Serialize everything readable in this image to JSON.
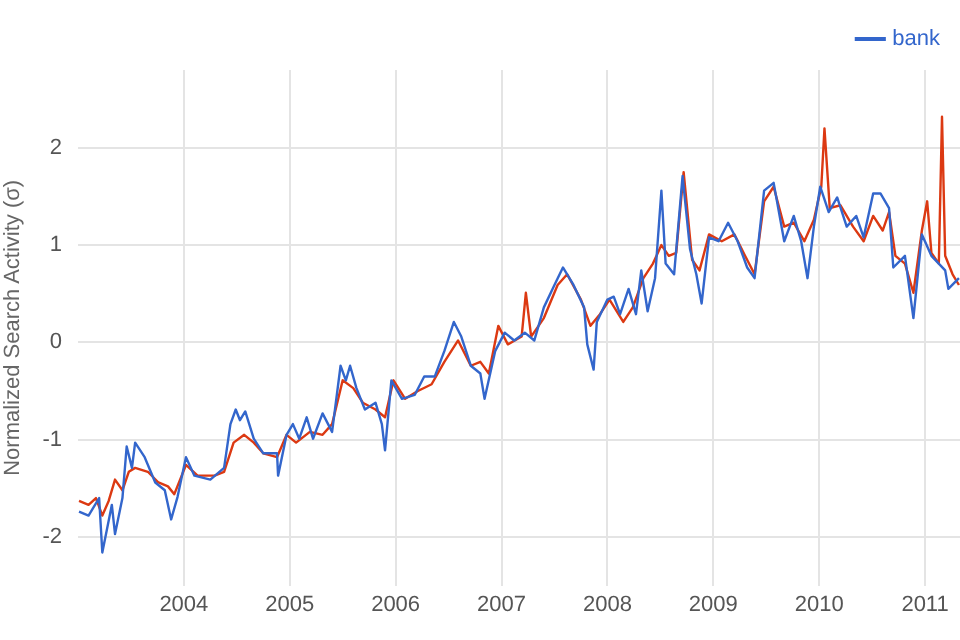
{
  "chart_data": {
    "type": "line",
    "ylabel": "Normalized Search Activity (σ)",
    "xlim": [
      2003,
      2011.33
    ],
    "xticks": [
      2004,
      2005,
      2006,
      2007,
      2008,
      2009,
      2010,
      2011
    ],
    "ylim": [
      -2.5,
      2.8
    ],
    "yticks": [
      -2,
      -1,
      0,
      1,
      2
    ],
    "grid": true,
    "legend": "top right",
    "marker": "none",
    "line_style": "solid",
    "series": [
      {
        "name": "bank",
        "color": "#3366cc",
        "x": [
          2003.01,
          2003.1,
          2003.2,
          2003.23,
          2003.32,
          2003.35,
          2003.42,
          2003.46,
          2003.51,
          2003.54,
          2003.63,
          2003.73,
          2003.82,
          2003.88,
          2003.94,
          2004.02,
          2004.1,
          2004.25,
          2004.38,
          2004.44,
          2004.49,
          2004.53,
          2004.58,
          2004.66,
          2004.75,
          2004.88,
          2004.89,
          2004.97,
          2005.03,
          2005.09,
          2005.16,
          2005.22,
          2005.31,
          2005.4,
          2005.48,
          2005.53,
          2005.57,
          2005.63,
          2005.71,
          2005.81,
          2005.87,
          2005.9,
          2005.96,
          2006.06,
          2006.18,
          2006.27,
          2006.37,
          2006.46,
          2006.55,
          2006.62,
          2006.71,
          2006.8,
          2006.84,
          2006.94,
          2007.03,
          2007.12,
          2007.22,
          2007.31,
          2007.4,
          2007.5,
          2007.58,
          2007.68,
          2007.78,
          2007.81,
          2007.87,
          2007.9,
          2008,
          2008.06,
          2008.12,
          2008.2,
          2008.27,
          2008.32,
          2008.38,
          2008.45,
          2008.51,
          2008.55,
          2008.63,
          2008.71,
          2008.78,
          2008.84,
          2008.89,
          2008.96,
          2009.05,
          2009.14,
          2009.23,
          2009.32,
          2009.39,
          2009.48,
          2009.57,
          2009.67,
          2009.76,
          2009.83,
          2009.89,
          2009.95,
          2010.01,
          2010.09,
          2010.17,
          2010.26,
          2010.35,
          2010.42,
          2010.51,
          2010.58,
          2010.66,
          2010.7,
          2010.81,
          2010.89,
          2010.97,
          2011.06,
          2011.19,
          2011.22,
          2011.32
        ],
        "values": [
          -1.74,
          -1.78,
          -1.6,
          -2.16,
          -1.67,
          -1.97,
          -1.6,
          -1.07,
          -1.29,
          -1.03,
          -1.18,
          -1.44,
          -1.52,
          -1.82,
          -1.59,
          -1.18,
          -1.37,
          -1.41,
          -1.29,
          -0.84,
          -0.69,
          -0.8,
          -0.71,
          -0.99,
          -1.14,
          -1.14,
          -1.37,
          -0.95,
          -0.84,
          -0.99,
          -0.77,
          -0.99,
          -0.73,
          -0.92,
          -0.24,
          -0.39,
          -0.24,
          -0.47,
          -0.69,
          -0.62,
          -0.84,
          -1.11,
          -0.39,
          -0.58,
          -0.54,
          -0.35,
          -0.35,
          -0.09,
          0.21,
          0.06,
          -0.24,
          -0.32,
          -0.58,
          -0.09,
          0.1,
          0.02,
          0.1,
          0.02,
          0.36,
          0.59,
          0.77,
          0.59,
          0.36,
          -0.02,
          -0.28,
          0.21,
          0.44,
          0.47,
          0.29,
          0.55,
          0.29,
          0.74,
          0.32,
          0.66,
          1.56,
          0.81,
          0.7,
          1.71,
          0.96,
          0.7,
          0.4,
          1.08,
          1.04,
          1.23,
          1.04,
          0.77,
          0.66,
          1.56,
          1.64,
          1.04,
          1.3,
          1.04,
          0.66,
          1.19,
          1.6,
          1.34,
          1.49,
          1.19,
          1.3,
          1.08,
          1.53,
          1.53,
          1.38,
          0.77,
          0.89,
          0.25,
          1.11,
          0.89,
          0.74,
          0.55,
          0.66
        ]
      },
      {
        "color": "#dc3912",
        "x": [
          2003.01,
          2003.1,
          2003.17,
          2003.23,
          2003.29,
          2003.35,
          2003.42,
          2003.48,
          2003.54,
          2003.66,
          2003.76,
          2003.85,
          2003.91,
          2004.02,
          2004.13,
          2004.29,
          2004.38,
          2004.47,
          2004.57,
          2004.66,
          2004.75,
          2004.88,
          2004.97,
          2005.06,
          2005.19,
          2005.31,
          2005.4,
          2005.5,
          2005.6,
          2005.69,
          2005.81,
          2005.9,
          2005.98,
          2006.09,
          2006.21,
          2006.34,
          2006.46,
          2006.59,
          2006.71,
          2006.8,
          2006.88,
          2006.97,
          2007.06,
          2007.19,
          2007.23,
          2007.28,
          2007.4,
          2007.53,
          2007.62,
          2007.75,
          2007.84,
          2007.93,
          2008.02,
          2008.15,
          2008.24,
          2008.34,
          2008.43,
          2008.51,
          2008.58,
          2008.65,
          2008.72,
          2008.8,
          2008.87,
          2008.96,
          2009.08,
          2009.2,
          2009.3,
          2009.39,
          2009.48,
          2009.57,
          2009.67,
          2009.76,
          2009.86,
          2009.95,
          2010.02,
          2010.05,
          2010.1,
          2010.2,
          2010.32,
          2010.42,
          2010.51,
          2010.6,
          2010.66,
          2010.72,
          2010.81,
          2010.89,
          2010.97,
          2011.02,
          2011.06,
          2011.13,
          2011.16,
          2011.19,
          2011.26,
          2011.32
        ],
        "values": [
          -1.63,
          -1.67,
          -1.6,
          -1.78,
          -1.63,
          -1.41,
          -1.52,
          -1.33,
          -1.29,
          -1.33,
          -1.44,
          -1.48,
          -1.56,
          -1.26,
          -1.37,
          -1.37,
          -1.33,
          -1.03,
          -0.95,
          -1.03,
          -1.14,
          -1.18,
          -0.95,
          -1.03,
          -0.92,
          -0.95,
          -0.84,
          -0.39,
          -0.47,
          -0.62,
          -0.69,
          -0.77,
          -0.39,
          -0.58,
          -0.5,
          -0.43,
          -0.2,
          0.02,
          -0.24,
          -0.2,
          -0.32,
          0.17,
          -0.02,
          0.06,
          0.51,
          0.06,
          0.25,
          0.59,
          0.7,
          0.44,
          0.17,
          0.29,
          0.44,
          0.21,
          0.36,
          0.66,
          0.81,
          1,
          0.89,
          0.92,
          1.75,
          0.85,
          0.74,
          1.11,
          1.04,
          1.11,
          0.89,
          0.7,
          1.45,
          1.6,
          1.19,
          1.23,
          1.04,
          1.26,
          1.6,
          2.2,
          1.38,
          1.41,
          1.19,
          1.04,
          1.3,
          1.15,
          1.34,
          0.89,
          0.81,
          0.51,
          1.15,
          1.45,
          0.92,
          0.81,
          2.32,
          0.89,
          0.7,
          0.59
        ]
      }
    ]
  }
}
